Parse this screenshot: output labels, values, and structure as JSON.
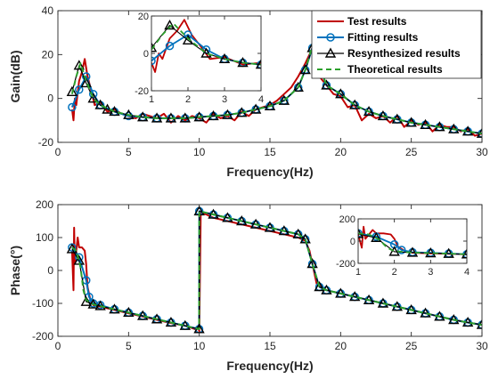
{
  "colors": {
    "test": "#c00000",
    "fit": "#0072bd",
    "resyn": "#000000",
    "theory": "#2ca02c",
    "axis": "#262626"
  },
  "chart_data": [
    {
      "type": "line",
      "xlabel": "Frequency(Hz)",
      "ylabel": "Gain(dB)",
      "xlim": [
        0,
        30
      ],
      "ylim": [
        -20,
        40
      ],
      "xticks": [
        "0",
        "5",
        "10",
        "15",
        "20",
        "25",
        "30"
      ],
      "yticks": [
        "-20",
        "0",
        "20",
        "40"
      ],
      "grid": false,
      "legend": "top-right",
      "series": [
        {
          "name": "Test results",
          "x": [
            1,
            1.1,
            1.2,
            1.3,
            1.5,
            1.7,
            1.9,
            2.1,
            2.3,
            2.6,
            3,
            3.5,
            4,
            4.5,
            5,
            5.5,
            6,
            6.5,
            7,
            7.5,
            8,
            8.5,
            9,
            9.5,
            10,
            10.5,
            11,
            11.5,
            12,
            12.5,
            13,
            13.5,
            14,
            14.5,
            15,
            15.5,
            16,
            16.5,
            17,
            17.5,
            17.8,
            18,
            18.2,
            18.5,
            19,
            19.5,
            20,
            20.5,
            21,
            21.5,
            22,
            22.5,
            23,
            23.5,
            24,
            24.5,
            25,
            25.5,
            26,
            26.5,
            27,
            27.5,
            28,
            28.5,
            29,
            29.5,
            30
          ],
          "y": [
            -5,
            -10,
            0,
            -3,
            8,
            12,
            18,
            10,
            5,
            -3,
            -2,
            -6,
            -5,
            -7,
            -8,
            -9,
            -7,
            -8,
            -9,
            -7,
            -11,
            -8,
            -10,
            -8,
            -9,
            -11,
            -7,
            -9,
            -8,
            -10,
            -6,
            -8,
            -5,
            -4,
            -3,
            -1,
            2,
            5,
            10,
            16,
            20,
            23,
            18,
            10,
            6,
            2,
            1,
            -4,
            -3,
            -10,
            -7,
            -9,
            -8,
            -11,
            -8,
            -13,
            -10,
            -12,
            -11,
            -15,
            -12,
            -13,
            -13,
            -15,
            -14,
            -17,
            -16
          ]
        },
        {
          "name": "Fitting results",
          "x": [
            1,
            1.5,
            2,
            2.5,
            3,
            4,
            5,
            6,
            7,
            8,
            9,
            10,
            11,
            12,
            13,
            14,
            15,
            16,
            17,
            17.5,
            18,
            18.5,
            19,
            20,
            21,
            22,
            23,
            24,
            25,
            26,
            27,
            28,
            29,
            30
          ],
          "y": [
            -4,
            4,
            10,
            2,
            -3,
            -6,
            -8,
            -8.5,
            -9,
            -9,
            -9,
            -8.5,
            -8,
            -7.5,
            -6.5,
            -5,
            -3.5,
            -1,
            5,
            13,
            23,
            15,
            6,
            2,
            -3,
            -6,
            -8,
            -9.5,
            -11,
            -12,
            -13,
            -14,
            -15,
            -16
          ]
        },
        {
          "name": "Resynthesized results",
          "x": [
            1,
            1.5,
            2,
            2.5,
            3,
            3.5,
            4,
            5,
            6,
            7,
            8,
            9,
            10,
            11,
            12,
            13,
            14,
            15,
            16,
            17,
            17.5,
            18,
            18.5,
            19,
            20,
            21,
            22,
            23,
            24,
            25,
            26,
            27,
            28,
            29,
            30
          ],
          "y": [
            3,
            15,
            7,
            0,
            -3,
            -5,
            -6,
            -7.5,
            -8.5,
            -9,
            -9,
            -9,
            -8.5,
            -8,
            -7.5,
            -6.5,
            -5,
            -3.5,
            -1,
            5,
            13,
            23,
            15,
            6,
            2,
            -3,
            -6,
            -8,
            -9.5,
            -11,
            -12,
            -13,
            -14,
            -15,
            -16
          ]
        },
        {
          "name": "Theoretical results",
          "x": [
            1,
            1.3,
            1.6,
            2,
            2.5,
            3,
            4,
            5,
            6,
            7,
            8,
            9,
            10,
            11,
            12,
            13,
            14,
            15,
            16,
            17,
            17.5,
            18,
            18.5,
            19,
            20,
            21,
            22,
            23,
            24,
            25,
            26,
            27,
            28,
            29,
            30
          ],
          "y": [
            2,
            10,
            16,
            8,
            0,
            -3,
            -6,
            -7.5,
            -8.5,
            -9,
            -9,
            -9,
            -8.5,
            -8,
            -7.5,
            -6.5,
            -5,
            -3.5,
            -1,
            5,
            13,
            24,
            15,
            6,
            2,
            -3,
            -6,
            -8,
            -9.5,
            -11,
            -12,
            -13,
            -14,
            -15,
            -16
          ]
        }
      ],
      "inset": {
        "xlim": [
          1,
          4
        ],
        "ylim": [
          -20,
          20
        ],
        "xticks": [
          "1",
          "2",
          "3",
          "4"
        ],
        "yticks": [
          "-20",
          "0",
          "20"
        ],
        "series": [
          {
            "name": "Test results",
            "x": [
              1,
              1.1,
              1.2,
              1.3,
              1.5,
              1.7,
              1.9,
              2.1,
              2.3,
              2.6,
              3,
              3.5,
              4
            ],
            "y": [
              -5,
              -10,
              0,
              -3,
              8,
              12,
              18,
              10,
              5,
              -3,
              -2,
              -6,
              -5
            ]
          },
          {
            "name": "Fitting results",
            "x": [
              1,
              1.5,
              2,
              2.5,
              3,
              3.5,
              4
            ],
            "y": [
              -4,
              4,
              10,
              2,
              -3,
              -5,
              -6
            ]
          },
          {
            "name": "Resynthesized results",
            "x": [
              1,
              1.5,
              2,
              2.5,
              3,
              3.5,
              4
            ],
            "y": [
              3,
              15,
              7,
              0,
              -3,
              -5,
              -6
            ]
          },
          {
            "name": "Theoretical results",
            "x": [
              1,
              1.3,
              1.6,
              2,
              2.5,
              3,
              3.5,
              4
            ],
            "y": [
              2,
              10,
              16,
              8,
              0,
              -3,
              -5,
              -6
            ]
          }
        ]
      }
    },
    {
      "type": "line",
      "xlabel": "Frequency(Hz)",
      "ylabel": "Phase(°)",
      "xlim": [
        0,
        30
      ],
      "ylim": [
        -200,
        200
      ],
      "xticks": [
        "0",
        "5",
        "10",
        "15",
        "20",
        "25",
        "30"
      ],
      "yticks": [
        "-200",
        "-100",
        "0",
        "100",
        "200"
      ],
      "grid": false,
      "series": [
        {
          "name": "Test results",
          "x": [
            1,
            1.1,
            1.15,
            1.2,
            1.3,
            1.4,
            1.5,
            1.7,
            1.9,
            2,
            2.1,
            2.3,
            2.5,
            3,
            4,
            5,
            6,
            7,
            8,
            9,
            9.5,
            9.8,
            9.9,
            10,
            10.1,
            10.5,
            11,
            12,
            13,
            14,
            15,
            16,
            17,
            17.5,
            17.8,
            18,
            18.3,
            18.6,
            19,
            20,
            21,
            22,
            23,
            24,
            25,
            26,
            27,
            28,
            29,
            30
          ],
          "y": [
            60,
            -60,
            130,
            20,
            60,
            100,
            70,
            70,
            60,
            20,
            -50,
            -90,
            -105,
            -110,
            -120,
            -130,
            -140,
            -150,
            -160,
            -168,
            -175,
            -180,
            -170,
            -185,
            175,
            170,
            160,
            150,
            140,
            130,
            120,
            110,
            100,
            90,
            60,
            20,
            -40,
            -50,
            -60,
            -70,
            -80,
            -90,
            -100,
            -110,
            -120,
            -130,
            -140,
            -150,
            -158,
            -165
          ]
        },
        {
          "name": "Fitting results",
          "x": [
            1,
            1.5,
            2,
            2.2,
            2.5,
            3,
            4,
            5,
            6,
            7,
            8,
            9,
            9.99,
            10,
            11,
            12,
            13,
            14,
            15,
            16,
            17,
            17.5,
            18,
            18.5,
            19,
            20,
            21,
            22,
            23,
            24,
            25,
            26,
            27,
            28,
            29,
            30
          ],
          "y": [
            70,
            40,
            -30,
            -80,
            -100,
            -105,
            -118,
            -128,
            -138,
            -148,
            -158,
            -168,
            -178,
            180,
            170,
            160,
            150,
            140,
            130,
            120,
            110,
            95,
            20,
            -50,
            -60,
            -70,
            -80,
            -90,
            -100,
            -110,
            -120,
            -130,
            -140,
            -150,
            -158,
            -165
          ]
        },
        {
          "name": "Resynthesized results",
          "x": [
            1,
            1.5,
            2,
            2.5,
            3,
            4,
            5,
            6,
            7,
            8,
            9,
            9.99,
            10,
            11,
            12,
            13,
            14,
            15,
            16,
            17,
            17.5,
            18,
            18.5,
            19,
            20,
            21,
            22,
            23,
            24,
            25,
            26,
            27,
            28,
            29,
            30
          ],
          "y": [
            65,
            30,
            -95,
            -103,
            -108,
            -118,
            -128,
            -138,
            -148,
            -158,
            -168,
            -178,
            180,
            170,
            160,
            150,
            140,
            130,
            120,
            110,
            95,
            20,
            -50,
            -60,
            -70,
            -80,
            -90,
            -100,
            -110,
            -120,
            -130,
            -140,
            -150,
            -158,
            -165
          ]
        },
        {
          "name": "Theoretical results",
          "x": [
            1,
            1.3,
            1.6,
            1.8,
            2,
            2.5,
            3,
            4,
            5,
            6,
            7,
            8,
            9,
            9.99,
            10,
            11,
            12,
            13,
            14,
            15,
            16,
            17,
            17.5,
            18,
            18.5,
            19,
            20,
            21,
            22,
            23,
            24,
            25,
            26,
            27,
            28,
            29,
            30
          ],
          "y": [
            70,
            60,
            10,
            -60,
            -90,
            -103,
            -108,
            -118,
            -128,
            -138,
            -148,
            -158,
            -168,
            -178,
            180,
            170,
            160,
            150,
            140,
            130,
            120,
            110,
            95,
            20,
            -50,
            -60,
            -70,
            -80,
            -90,
            -100,
            -110,
            -120,
            -130,
            -140,
            -150,
            -158,
            -165
          ]
        }
      ],
      "inset": {
        "xlim": [
          1,
          4
        ],
        "ylim": [
          -200,
          200
        ],
        "xticks": [
          "1",
          "2",
          "3",
          "4"
        ],
        "yticks": [
          "-200",
          "0",
          "200"
        ],
        "series": [
          {
            "name": "Test results",
            "x": [
              1,
              1.1,
              1.15,
              1.2,
              1.3,
              1.4,
              1.5,
              1.7,
              1.9,
              2,
              2.1,
              2.3,
              2.5,
              3,
              3.5,
              4
            ],
            "y": [
              60,
              -60,
              130,
              20,
              60,
              100,
              70,
              70,
              60,
              20,
              -50,
              -90,
              -105,
              -110,
              -115,
              -120
            ]
          },
          {
            "name": "Fitting results",
            "x": [
              1,
              1.5,
              2,
              2.2,
              2.5,
              3,
              3.5,
              4
            ],
            "y": [
              70,
              40,
              -30,
              -80,
              -100,
              -105,
              -112,
              -118
            ]
          },
          {
            "name": "Resynthesized results",
            "x": [
              1,
              1.5,
              2,
              2.5,
              3,
              3.5,
              4
            ],
            "y": [
              65,
              30,
              -95,
              -103,
              -108,
              -113,
              -118
            ]
          },
          {
            "name": "Theoretical results",
            "x": [
              1,
              1.3,
              1.6,
              1.8,
              2,
              2.5,
              3,
              3.5,
              4
            ],
            "y": [
              70,
              60,
              10,
              -60,
              -90,
              -103,
              -108,
              -113,
              -118
            ]
          }
        ]
      }
    }
  ]
}
